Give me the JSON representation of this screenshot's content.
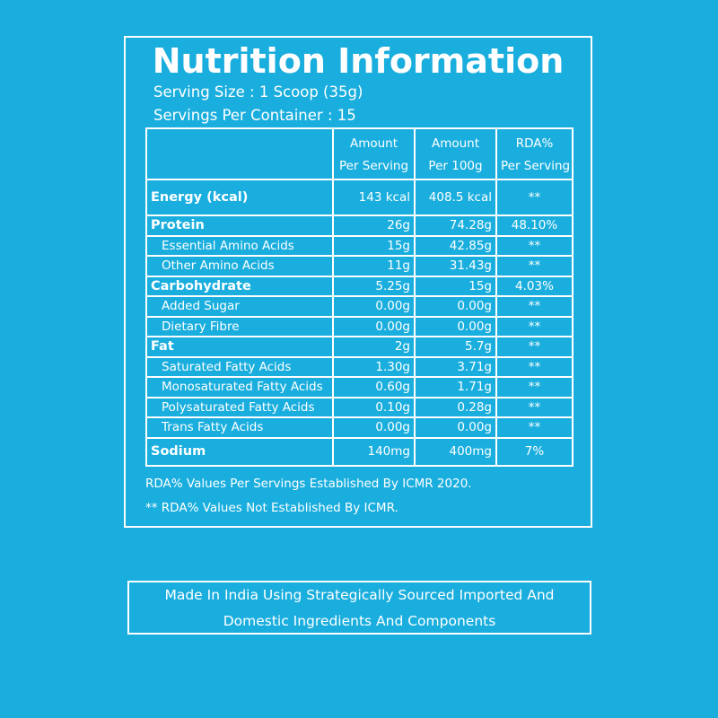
{
  "title": "Nutrition Information",
  "serving_size": "Serving Size : 1 Scoop (35g)",
  "servings_per_container": "Servings Per Container : 15",
  "table": {
    "headers": [
      {
        "line1": "Amount",
        "line2": "Per Serving"
      },
      {
        "line1": "Amount",
        "line2": "Per 100g"
      },
      {
        "line1": "RDA%",
        "line2": "Per Serving"
      }
    ],
    "rows": [
      {
        "name": "Energy (kcal)",
        "per_serving": "143 kcal",
        "per_100g": "408.5 kcal",
        "rda": "**"
      },
      {
        "name": "Protein",
        "per_serving": "26g",
        "per_100g": "74.28g",
        "rda": "48.10%"
      },
      {
        "name": "Essential Amino Acids",
        "per_serving": "15g",
        "per_100g": "42.85g",
        "rda": "**"
      },
      {
        "name": "Other Amino Acids",
        "per_serving": "11g",
        "per_100g": "31.43g",
        "rda": "**"
      },
      {
        "name": "Carbohydrate",
        "per_serving": "5.25g",
        "per_100g": "15g",
        "rda": "4.03%"
      },
      {
        "name": "Added Sugar",
        "per_serving": "0.00g",
        "per_100g": "0.00g",
        "rda": "**"
      },
      {
        "name": "Dietary Fibre",
        "per_serving": "0.00g",
        "per_100g": "0.00g",
        "rda": "**"
      },
      {
        "name": "Fat",
        "per_serving": "2g",
        "per_100g": "5.7g",
        "rda": "**"
      },
      {
        "name": "Saturated Fatty Acids",
        "per_serving": "1.30g",
        "per_100g": "3.71g",
        "rda": "**"
      },
      {
        "name": "Monosaturated Fatty Acids",
        "per_serving": "0.60g",
        "per_100g": "1.71g",
        "rda": "**"
      },
      {
        "name": "Polysaturated Fatty Acids",
        "per_serving": "0.10g",
        "per_100g": "0.28g",
        "rda": "**"
      },
      {
        "name": "Trans Fatty Acids",
        "per_serving": "0.00g",
        "per_100g": "0.00g",
        "rda": "**"
      },
      {
        "name": "Sodium",
        "per_serving": "140mg",
        "per_100g": "400mg",
        "rda": "7%"
      }
    ]
  },
  "notes": {
    "rda_note": "RDA%  Values Per Servings Established By ICMR 2020.",
    "not_established_note": "** RDA%  Values Not Established By ICMR."
  },
  "made_in": {
    "line1": "Made In India Using Strategically Sourced Imported And",
    "line2": "Domestic Ingredients And Components"
  },
  "colors": {
    "background": "#1aaede",
    "text": "#ffffff"
  }
}
